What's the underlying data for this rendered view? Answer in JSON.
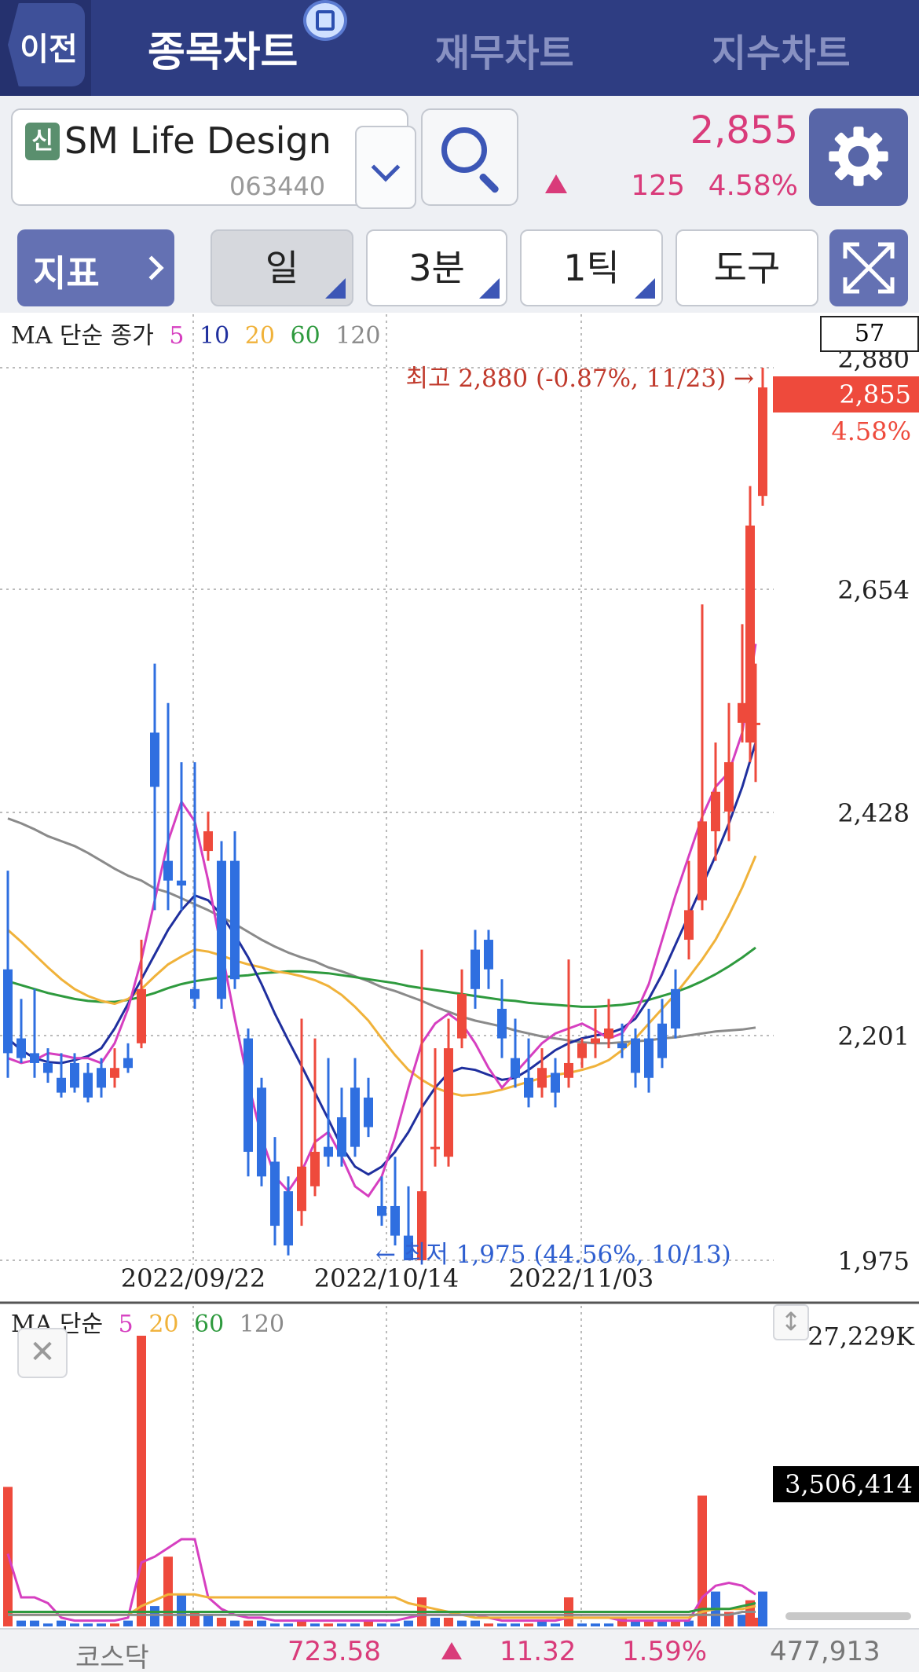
{
  "nav": {
    "back_label": "이전",
    "tabs": [
      {
        "label": "종목차트",
        "active": true
      },
      {
        "label": "재무차트",
        "active": false
      },
      {
        "label": "지수차트",
        "active": false
      }
    ]
  },
  "stock": {
    "badge": "신",
    "name": "SM Life Design",
    "code": "063440",
    "price": "2,855",
    "change": "125",
    "change_pct": "4.58%",
    "direction": "up",
    "up_color": "#d93b7a"
  },
  "toolbar": {
    "indicator_label": "지표",
    "period_label": "일",
    "minute_label": "3분",
    "tick_label": "1틱",
    "tools_label": "도구"
  },
  "chart": {
    "legend_title": "MA 단순 종가",
    "legend_periods": [
      "5",
      "10",
      "20",
      "60",
      "120"
    ],
    "legend_colors": [
      "#d63fc0",
      "#1f2f9e",
      "#f0b23a",
      "#2e9a3e",
      "#8a8a8a"
    ],
    "candle_count": "57",
    "y_labels": [
      "2,880",
      "2,654",
      "2,428",
      "2,201",
      "1,975"
    ],
    "x_labels": [
      "2022/09/22",
      "2022/10/14",
      "2022/11/03"
    ],
    "high_annotation": "최고 2,880 (-0.87%, 11/23) →",
    "low_annotation": "← 최저 1,975 (44.56%, 10/13)",
    "current_price": "2,855",
    "current_pct": "4.58%",
    "up_color": "#ee4a3c",
    "down_color": "#2f6fe0"
  },
  "volume": {
    "legend_title": "MA 단순",
    "legend_periods": [
      "5",
      "20",
      "60",
      "120"
    ],
    "legend_colors": [
      "#d63fc0",
      "#f0b23a",
      "#2e9a3e",
      "#8a8a8a"
    ],
    "max_label": "27,229K",
    "current_label": "3,506,414"
  },
  "index_bar": {
    "name": "코스닥",
    "value": "723.58",
    "change": "11.32",
    "change_pct": "1.59%",
    "volume": "477,913"
  },
  "chart_data": {
    "type": "candlestick",
    "count": 57,
    "ylim": [
      1975,
      2880
    ],
    "y_ticks": [
      2880,
      2654,
      2428,
      2201,
      1975
    ],
    "x_ticks": [
      "2022/09/22",
      "2022/10/14",
      "2022/11/03"
    ],
    "high": {
      "value": 2880,
      "pct": -0.87,
      "date": "11/23"
    },
    "low": {
      "value": 1975,
      "pct": 44.56,
      "date": "10/13"
    },
    "last_close": 2855,
    "volume_max": 27229000,
    "volume_last": 3506414
  }
}
